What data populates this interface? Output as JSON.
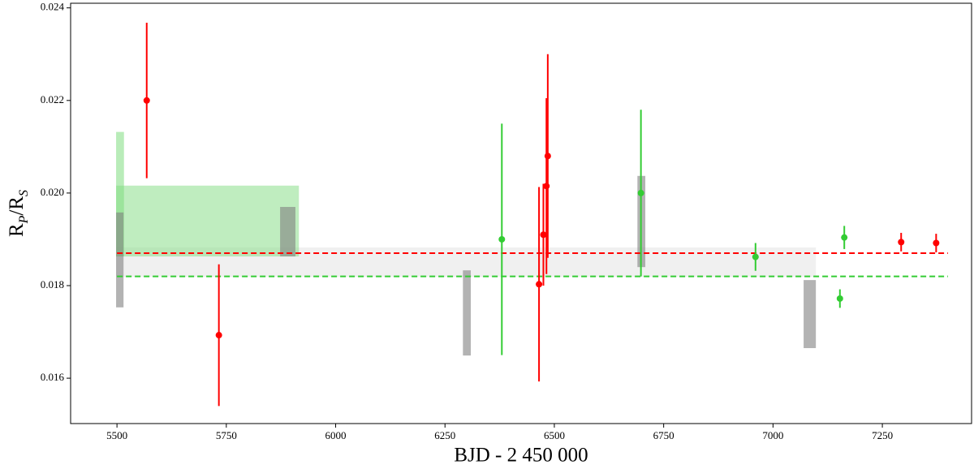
{
  "chart_data": {
    "type": "errorbar",
    "x_label": "BJD - 2 450 000",
    "y_label_parts": [
      "R",
      "P",
      "/R",
      "S"
    ],
    "xlim": [
      5394,
      7454
    ],
    "ylim": [
      0.01502,
      0.0241
    ],
    "xticks": [
      5500,
      5750,
      6000,
      6250,
      6500,
      6750,
      7000,
      7250
    ],
    "yticks": [
      0.016,
      0.018,
      {
        "value": 0.02,
        "label": "0.020"
      },
      0.022,
      0.024
    ],
    "bands": [
      {
        "color": "#e6e6e6",
        "opacity": 0.6,
        "x": [
          5498,
          7098
        ],
        "y": [
          0.01819,
          0.018825
        ]
      },
      {
        "color": "#7fdc7f",
        "opacity": 0.5,
        "x": [
          5498,
          5916
        ],
        "y": [
          0.01863,
          0.02016
        ]
      },
      {
        "color": "#7fdc7f",
        "opacity": 0.55,
        "x": [
          5498,
          5516
        ],
        "y": [
          0.01863,
          0.02132
        ]
      },
      {
        "color": "#808080",
        "opacity": 0.6,
        "x": [
          5498,
          5515
        ],
        "y": [
          0.01753,
          0.01958
        ]
      },
      {
        "color": "#808080",
        "opacity": 0.6,
        "x": [
          5873,
          5908
        ],
        "y": [
          0.01863,
          0.0197
        ]
      },
      {
        "color": "#808080",
        "opacity": 0.6,
        "x": [
          6291,
          6309
        ],
        "y": [
          0.01649,
          0.01833
        ]
      },
      {
        "color": "#808080",
        "opacity": 0.6,
        "x": [
          6690,
          6708
        ],
        "y": [
          0.0184,
          0.02037
        ]
      },
      {
        "color": "#808080",
        "opacity": 0.6,
        "x": [
          7070,
          7098
        ],
        "y": [
          0.01665,
          0.01812
        ]
      }
    ],
    "hlines": [
      {
        "color": "#ff0000",
        "value": 0.0187,
        "x": [
          5500,
          7400
        ]
      },
      {
        "color": "#33cc33",
        "value": 0.0182,
        "x": [
          5500,
          7400
        ]
      }
    ],
    "series": [
      {
        "color": "#ff0000",
        "x": [
          5568,
          5733,
          6465,
          6475,
          6482,
          6485,
          7293,
          7373
        ],
        "values": [
          0.022,
          0.01693,
          0.01803,
          0.0191,
          0.02015,
          0.0208,
          0.01894,
          0.01892
        ],
        "errors": [
          0.00168,
          0.00153,
          0.0021,
          0.0011,
          0.0019,
          0.0022,
          0.0002,
          0.0002
        ]
      },
      {
        "color": "#33cc33",
        "x": [
          6380,
          6698,
          6960,
          7153,
          7163
        ],
        "values": [
          0.019,
          0.02,
          0.01862,
          0.01772,
          0.01904
        ],
        "errors": [
          0.0025,
          0.0018,
          0.0003,
          0.0002,
          0.00025
        ]
      }
    ]
  }
}
